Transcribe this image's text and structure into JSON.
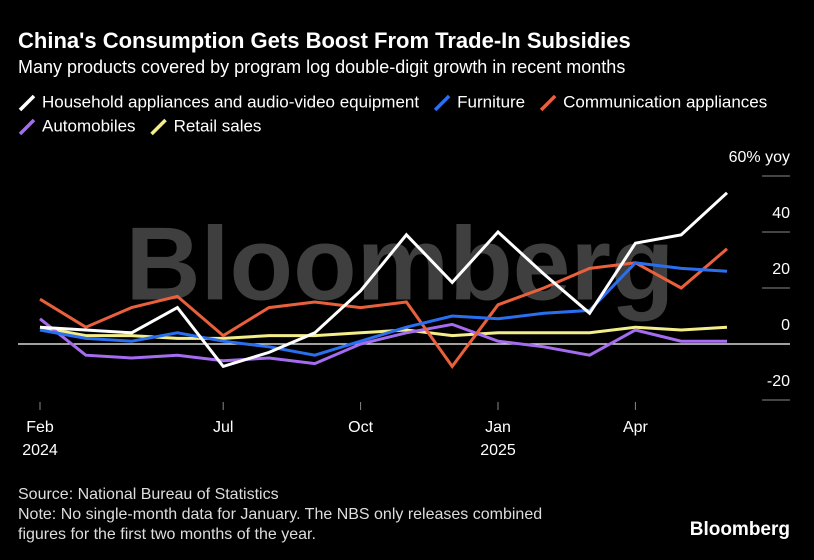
{
  "chart_data": {
    "type": "line",
    "title": "China's Consumption Gets Boost From Trade-In Subsidies",
    "subtitle": "Many products covered by program log double-digit growth in recent months",
    "watermark": "Bloomberg",
    "categories": [
      "Feb 2024",
      null,
      null,
      null,
      "Jul",
      null,
      null,
      "Oct",
      null,
      null,
      "Jan 2025",
      null,
      null,
      "Apr",
      null,
      null
    ],
    "series": [
      {
        "name": "Household appliances and audio-video equipment",
        "color": "#ffffff",
        "values": [
          6,
          5,
          4,
          13,
          -8,
          -3,
          4,
          19,
          39,
          22,
          40,
          25,
          11,
          36,
          39,
          54
        ]
      },
      {
        "name": "Furniture",
        "color": "#2a6ff0",
        "values": [
          5,
          2,
          1,
          4,
          1,
          -1,
          -4,
          1,
          6,
          10,
          9,
          11,
          12,
          29,
          27,
          26
        ]
      },
      {
        "name": "Communication appliances",
        "color": "#e8603c",
        "values": [
          16,
          6,
          13,
          17,
          3,
          13,
          15,
          13,
          15,
          -8,
          14,
          20,
          27,
          29,
          20,
          34
        ]
      },
      {
        "name": "Automobiles",
        "color": "#a66cf0",
        "values": [
          9,
          -4,
          -5,
          -4,
          -6,
          -5,
          -7,
          0,
          4,
          7,
          1,
          -1,
          -4,
          5,
          1,
          1
        ]
      },
      {
        "name": "Retail sales",
        "color": "#f3ee8a",
        "values": [
          6,
          3,
          3,
          2,
          2,
          3,
          3,
          4,
          5,
          3,
          4,
          4,
          4,
          6,
          5,
          6
        ]
      }
    ],
    "ylim": [
      -23,
      60
    ],
    "yticks": [
      -20,
      0,
      20,
      40,
      {
        "value": 60,
        "label": "60% yoy"
      }
    ],
    "source": "Source: National Bureau of Statistics",
    "note": [
      "Note: No single-month data for January. The NBS only releases combined",
      "figures for the first two months of the year."
    ],
    "logo": "Bloomberg"
  }
}
